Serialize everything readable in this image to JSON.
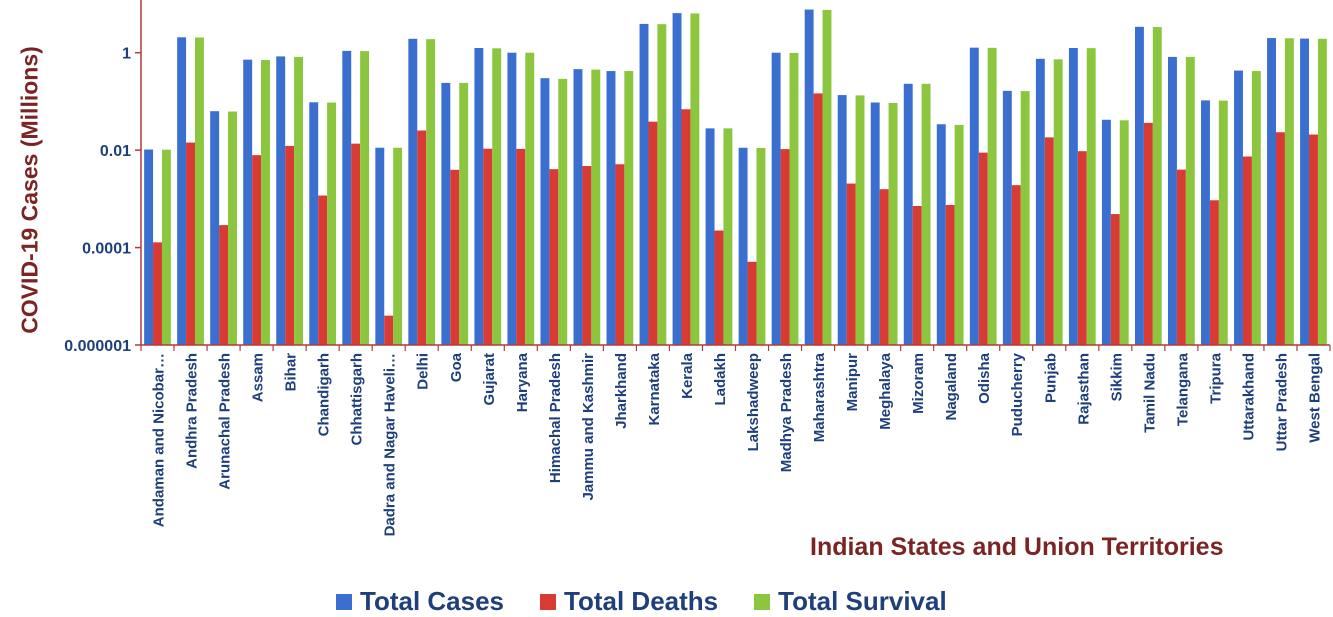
{
  "chart_data": {
    "type": "bar",
    "y_scale": "log",
    "ylim": [
      1e-06,
      10
    ],
    "yticks": [
      "1",
      "0.01",
      "0.0001",
      "0.000001"
    ],
    "ytick_values": [
      1,
      0.01,
      0.0001,
      1e-06
    ],
    "ylabel": "COVID-19 Cases (Millions)",
    "xlabel": "Indian States and Union Territories",
    "legend_position": "bottom",
    "grid": false,
    "categories": [
      "Andaman and Nicobar…",
      "Andhra Pradesh",
      "Arunachal Pradesh",
      "Assam",
      "Bihar",
      "Chandigarh",
      "Chhattisgarh",
      "Dadra and Nagar Haveli…",
      "Delhi",
      "Goa",
      "Gujarat",
      "Haryana",
      "Himachal Pradesh",
      "Jammu and Kashmir",
      "Jharkhand",
      "Karnataka",
      "Kerala",
      "Ladakh",
      "Lakshadweep",
      "Madhya Pradesh",
      "Maharashtra",
      "Manipur",
      "Meghalaya",
      "Mizoram",
      "Nagaland",
      "Odisha",
      "Puducherry",
      "Punjab",
      "Rajasthan",
      "Sikkim",
      "Tamil Nadu",
      "Telangana",
      "Tripura",
      "Uttarakhand",
      "Uttar Pradesh",
      "West Bengal"
    ],
    "series": [
      {
        "name": "Total Cases",
        "color": "#3a6fd0",
        "values": [
          0.0103,
          2.07,
          0.063,
          0.72,
          0.84,
          0.096,
          1.09,
          0.0112,
          1.93,
          0.24,
          1.25,
          1.0,
          0.3,
          0.46,
          0.42,
          3.9,
          6.5,
          0.028,
          0.0112,
          1.0,
          7.7,
          0.135,
          0.095,
          0.23,
          0.034,
          1.27,
          0.165,
          0.75,
          1.25,
          0.042,
          3.4,
          0.82,
          0.105,
          0.43,
          2.0,
          1.95
        ]
      },
      {
        "name": "Total Deaths",
        "color": "#d83a34",
        "values": [
          0.000128,
          0.0143,
          0.000289,
          0.00788,
          0.0122,
          0.00117,
          0.0136,
          4e-06,
          0.0253,
          0.00394,
          0.0107,
          0.0106,
          0.00407,
          0.00472,
          0.00513,
          0.0384,
          0.069,
          0.000224,
          5.1e-05,
          0.0105,
          0.146,
          0.00206,
          0.00158,
          0.000714,
          0.000748,
          0.0089,
          0.00191,
          0.0183,
          0.00952,
          0.000487,
          0.0363,
          0.00398,
          0.000935,
          0.0074,
          0.0233,
          0.0209
        ]
      },
      {
        "name": "Total Survival",
        "color": "#8cc63f",
        "values": [
          0.0102,
          2.05,
          0.062,
          0.71,
          0.82,
          0.095,
          1.08,
          0.0112,
          1.9,
          0.24,
          1.23,
          1.0,
          0.29,
          0.45,
          0.42,
          3.85,
          6.4,
          0.028,
          0.0111,
          0.99,
          7.55,
          0.133,
          0.093,
          0.23,
          0.033,
          1.26,
          0.163,
          0.73,
          1.24,
          0.041,
          3.36,
          0.82,
          0.104,
          0.42,
          1.98,
          1.93
        ]
      }
    ]
  }
}
